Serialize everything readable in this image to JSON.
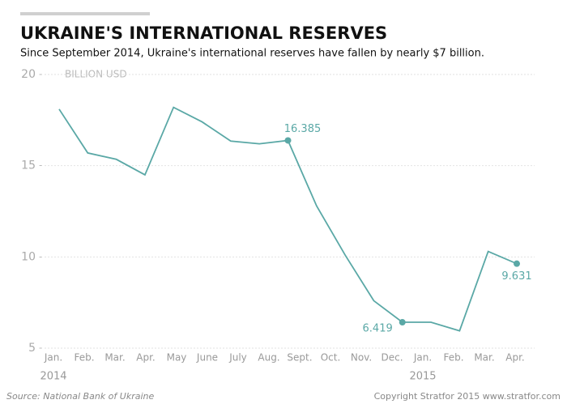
{
  "chart_data": {
    "type": "line",
    "title": "UKRAINE'S INTERNATIONAL RESERVES",
    "subtitle": "Since September 2014, Ukraine's international reserves have fallen by nearly $7 billion.",
    "ylabel": "BILLION USD",
    "categories": [
      "Jan.",
      "Feb.",
      "Mar.",
      "Apr.",
      "May",
      "June",
      "July",
      "Aug.",
      "Sept.",
      "Oct.",
      "Nov.",
      "Dec.",
      "Jan.",
      "Feb.",
      "Mar.",
      "Apr.",
      null
    ],
    "years": [
      {
        "index": 0,
        "label": "2014"
      },
      {
        "index": 12,
        "label": "2015"
      }
    ],
    "series": [
      {
        "name": "International reserves",
        "color": "#5aa8a6",
        "values": [
          18.1,
          15.7,
          15.35,
          14.5,
          18.2,
          17.4,
          16.35,
          16.2,
          16.385,
          12.8,
          10.1,
          7.6,
          6.419,
          6.42,
          5.95,
          10.3,
          9.631
        ]
      }
    ],
    "labeled_points": [
      8,
      12,
      16
    ],
    "ylim": [
      5,
      20
    ],
    "yticks": [
      5,
      10,
      15,
      20
    ],
    "grid": true,
    "source": "Source: National Bank of Ukraine",
    "credit": "Copyright Stratfor 2015  www.stratfor.com"
  }
}
